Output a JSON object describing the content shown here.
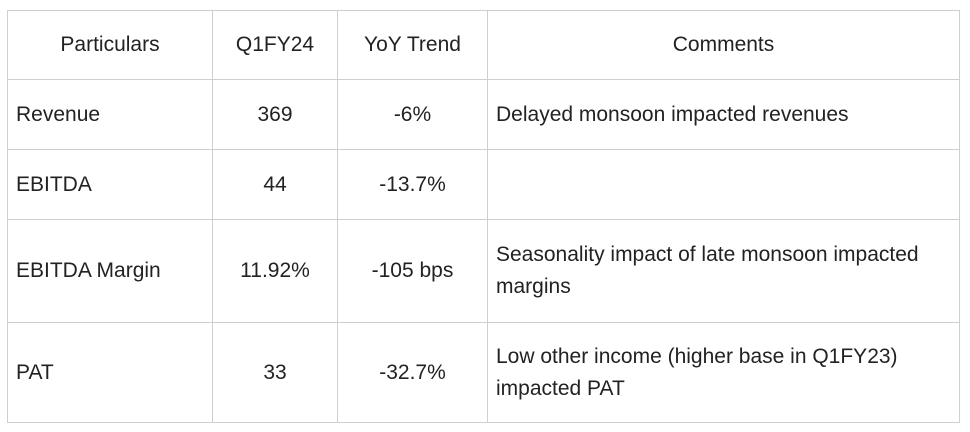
{
  "table": {
    "headers": [
      "Particulars",
      "Q1FY24",
      "YoY Trend",
      "Comments"
    ],
    "rows": [
      {
        "particular": "Revenue",
        "value": "369",
        "trend": "-6%",
        "comment": "Delayed monsoon impacted revenues"
      },
      {
        "particular": "EBITDA",
        "value": "44",
        "trend": "-13.7%",
        "comment": ""
      },
      {
        "particular": "EBITDA Margin",
        "value": "11.92%",
        "trend": "-105 bps",
        "comment": "Seasonality impact of late monsoon impacted margins"
      },
      {
        "particular": "PAT",
        "value": "33",
        "trend": "-32.7%",
        "comment": "Low other income (higher base in Q1FY23) impacted PAT"
      }
    ]
  }
}
